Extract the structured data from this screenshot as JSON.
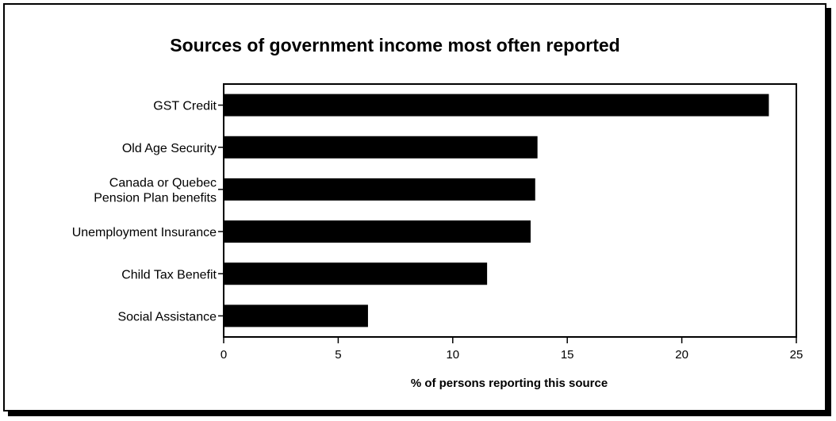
{
  "chart_data": {
    "type": "bar",
    "orientation": "horizontal",
    "title": "Sources of government income most often reported",
    "xlabel": "% of persons reporting this source",
    "ylabel": "",
    "categories": [
      [
        "GST Credit"
      ],
      [
        "Old Age Security"
      ],
      [
        "Canada or Quebec",
        "Pension Plan benefits"
      ],
      [
        "Unemployment Insurance"
      ],
      [
        "Child Tax Benefit"
      ],
      [
        "Social Assistance"
      ]
    ],
    "values": [
      23.8,
      13.7,
      13.6,
      13.4,
      11.5,
      6.3
    ],
    "xlim": [
      0,
      25
    ],
    "xticks": [
      0,
      5,
      10,
      15,
      20,
      25
    ],
    "grid": false,
    "bar_color": "#000000"
  }
}
